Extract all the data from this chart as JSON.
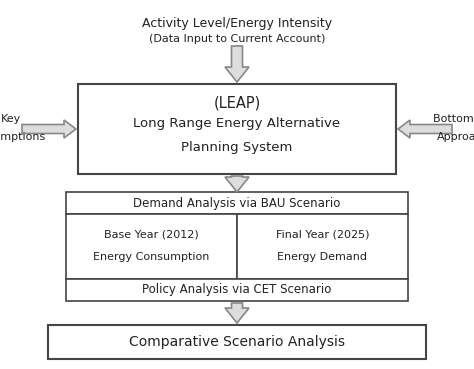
{
  "bg_color": "#ffffff",
  "box_edge_color": "#444444",
  "box_face_color": "#ffffff",
  "arrow_edge_color": "#888888",
  "arrow_face_color": "#dddddd",
  "text_color": "#222222",
  "title_top_line1": "Activity Level/Energy Intensity",
  "title_top_line2": "(Data Input to Current Account)",
  "leap_label_line1": "(LEAP)",
  "leap_label_line2": "Long Range Energy Alternative",
  "leap_label_line3": "Planning System",
  "left_label_line1": "Key",
  "left_label_line2": "Assumptions",
  "right_label_line1": "Bottom Up",
  "right_label_line2": "Approach",
  "demand_label": "Demand Analysis via BAU Scenario",
  "sub_left_line1": "Base Year (2012)",
  "sub_left_line2": "Energy Consumption",
  "sub_right_line1": "Final Year (2025)",
  "sub_right_line2": "Energy Demand",
  "policy_label": "Policy Analysis via CET Scenario",
  "bottom_label": "Comparative Scenario Analysis",
  "figsize": [
    4.74,
    3.69
  ],
  "dpi": 100
}
